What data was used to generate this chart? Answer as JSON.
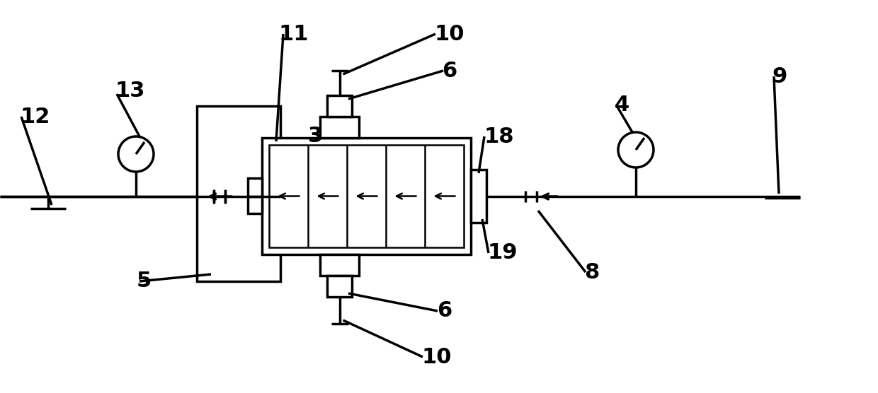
{
  "background": "#ffffff",
  "line_color": "#000000",
  "lw": 2.5,
  "lw_thin": 1.8,
  "fontsize": 22,
  "labels": [
    [
      "12",
      28,
      165
    ],
    [
      "13",
      162,
      128
    ],
    [
      "11",
      393,
      48
    ],
    [
      "3",
      435,
      192
    ],
    [
      "10",
      613,
      48
    ],
    [
      "6",
      624,
      100
    ],
    [
      "18",
      683,
      193
    ],
    [
      "4",
      868,
      148
    ],
    [
      "9",
      1090,
      108
    ],
    [
      "8",
      825,
      385
    ],
    [
      "19",
      688,
      358
    ],
    [
      "6",
      617,
      440
    ],
    [
      "10",
      595,
      505
    ],
    [
      "5",
      193,
      398
    ]
  ]
}
